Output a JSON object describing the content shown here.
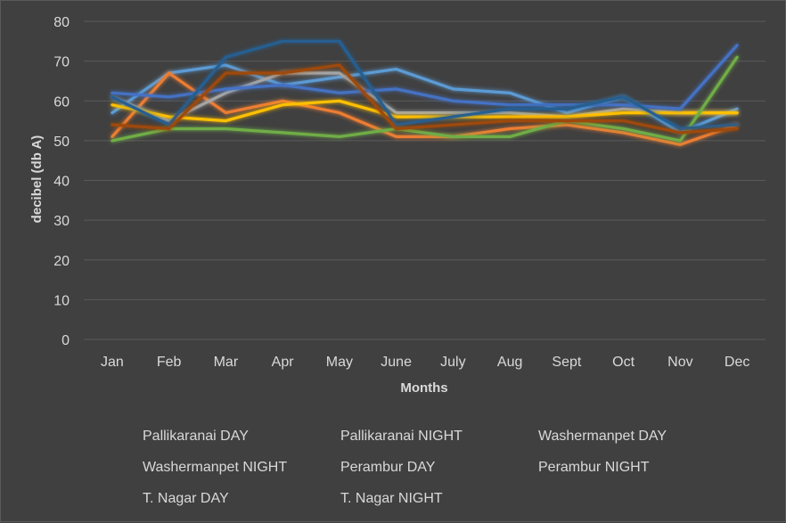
{
  "chart_data": {
    "type": "line",
    "title": "",
    "xlabel": "Months",
    "ylabel": "decibel (db A)",
    "ylim": [
      0,
      80
    ],
    "yticks": [
      0,
      10,
      20,
      30,
      40,
      50,
      60,
      70,
      80
    ],
    "grid": true,
    "legend_position": "bottom",
    "categories": [
      "Jan",
      "Feb",
      "Mar",
      "Apr",
      "May",
      "June",
      "July",
      "Aug",
      "Sept",
      "Oct",
      "Nov",
      "Dec"
    ],
    "series": [
      {
        "name": "Pallikaranai  DAY",
        "color": "#5b9bd5",
        "values": [
          57,
          67,
          69,
          64,
          66,
          68,
          63,
          62,
          57,
          61,
          52,
          58
        ]
      },
      {
        "name": "Pallikaranai  NIGHT",
        "color": "#ed7d31",
        "values": [
          51,
          67,
          57,
          60,
          57,
          51,
          51,
          53,
          54,
          52,
          49,
          54
        ]
      },
      {
        "name": "Washermanpet DAY",
        "color": "#a5a5a5",
        "values": [
          61,
          55,
          62,
          67,
          67,
          57,
          57,
          57,
          56,
          58,
          57,
          57
        ]
      },
      {
        "name": "Washermanpet NIGHT",
        "color": "#ffc000",
        "values": [
          59,
          56,
          55,
          59,
          60,
          56,
          56,
          56,
          56,
          57,
          57,
          57
        ]
      },
      {
        "name": "Perambur  DAY",
        "color": "#4472c4",
        "values": [
          62,
          61,
          63,
          64,
          62,
          63,
          60,
          59,
          59,
          59,
          58,
          74
        ]
      },
      {
        "name": "Perambur  NIGHT",
        "color": "#70ad47",
        "values": [
          50,
          53,
          53,
          52,
          51,
          53,
          51,
          51,
          55,
          53,
          50,
          71
        ]
      },
      {
        "name": "T. Nagar  DAY",
        "color": "#255e91",
        "values": [
          61,
          54,
          71,
          75,
          75,
          54,
          56,
          58,
          58,
          61,
          53,
          54
        ]
      },
      {
        "name": "T. Nagar  NIGHT",
        "color": "#9e480e",
        "values": [
          54,
          53,
          67,
          67,
          69,
          53,
          54,
          55,
          55,
          55,
          52,
          53
        ]
      }
    ]
  }
}
